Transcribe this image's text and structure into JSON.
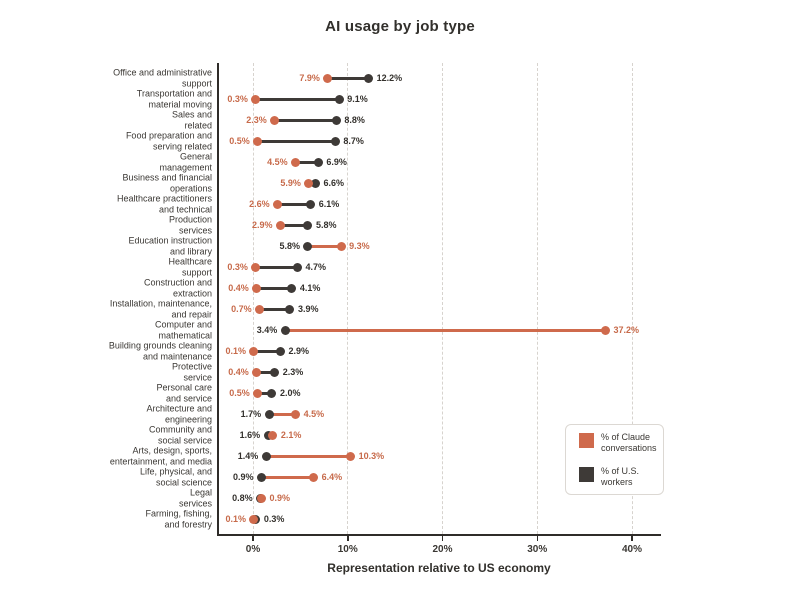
{
  "chart_data": {
    "type": "dumbbell",
    "title": "AI usage by job type",
    "xlabel": "Representation relative to US economy",
    "x_ticks": [
      {
        "value": 0,
        "label": "0%"
      },
      {
        "value": 10,
        "label": "10%"
      },
      {
        "value": 20,
        "label": "20%"
      },
      {
        "value": 30,
        "label": "30%"
      },
      {
        "value": 40,
        "label": "40%"
      }
    ],
    "xlim": [
      -3.8,
      43.2
    ],
    "grid": "dashed-vertical",
    "colors": {
      "claude": "#CF6A4C",
      "workers": "#3E3A37",
      "claude_text": "#C76A4A",
      "workers_text": "#33302C"
    },
    "series": [
      {
        "key": "claude",
        "name": "% of Claude conversations",
        "color": "#CF6A4C"
      },
      {
        "key": "workers",
        "name": "% of U.S. workers",
        "color": "#3E3A37"
      }
    ],
    "legend": {
      "position": "bottom-right",
      "entries": [
        {
          "series": "claude",
          "label": "% of Claude\nconversations",
          "color": "#CF6A4C"
        },
        {
          "series": "workers",
          "label": "% of U.S.\nworkers",
          "color": "#3E3A37"
        }
      ]
    },
    "rows": [
      {
        "label": "Office and administrative\nsupport",
        "claude": 7.9,
        "workers": 12.2
      },
      {
        "label": "Transportation and\nmaterial moving",
        "claude": 0.3,
        "workers": 9.1
      },
      {
        "label": "Sales and\nrelated",
        "claude": 2.3,
        "workers": 8.8
      },
      {
        "label": "Food preparation and\nserving related",
        "claude": 0.5,
        "workers": 8.7
      },
      {
        "label": "General\nmanagement",
        "claude": 4.5,
        "workers": 6.9
      },
      {
        "label": "Business and financial\noperations",
        "claude": 5.9,
        "workers": 6.6
      },
      {
        "label": "Healthcare practitioners\nand technical",
        "claude": 2.6,
        "workers": 6.1
      },
      {
        "label": "Production\nservices",
        "claude": 2.9,
        "workers": 5.8
      },
      {
        "label": "Education instruction\nand library",
        "claude": 9.3,
        "workers": 5.8
      },
      {
        "label": "Healthcare\nsupport",
        "claude": 0.3,
        "workers": 4.7
      },
      {
        "label": "Construction and\nextraction",
        "claude": 0.4,
        "workers": 4.1
      },
      {
        "label": "Installation, maintenance,\nand repair",
        "claude": 0.7,
        "workers": 3.9
      },
      {
        "label": "Computer and\nmathematical",
        "claude": 37.2,
        "workers": 3.4
      },
      {
        "label": "Building grounds cleaning\nand maintenance",
        "claude": 0.1,
        "workers": 2.9
      },
      {
        "label": "Protective\nservice",
        "claude": 0.4,
        "workers": 2.3
      },
      {
        "label": "Personal care\nand service",
        "claude": 0.5,
        "workers": 2.0
      },
      {
        "label": "Architecture and\nengineering",
        "claude": 4.5,
        "workers": 1.7
      },
      {
        "label": "Community and\nsocial service",
        "claude": 2.1,
        "workers": 1.6
      },
      {
        "label": "Arts, design, sports,\nentertainment, and media",
        "claude": 10.3,
        "workers": 1.4
      },
      {
        "label": "Life, physical, and\nsocial science",
        "claude": 6.4,
        "workers": 0.9
      },
      {
        "label": "Legal\nservices",
        "claude": 0.9,
        "workers": 0.8
      },
      {
        "label": "Farming, fishing,\nand forestry",
        "claude": 0.1,
        "workers": 0.3
      }
    ]
  }
}
